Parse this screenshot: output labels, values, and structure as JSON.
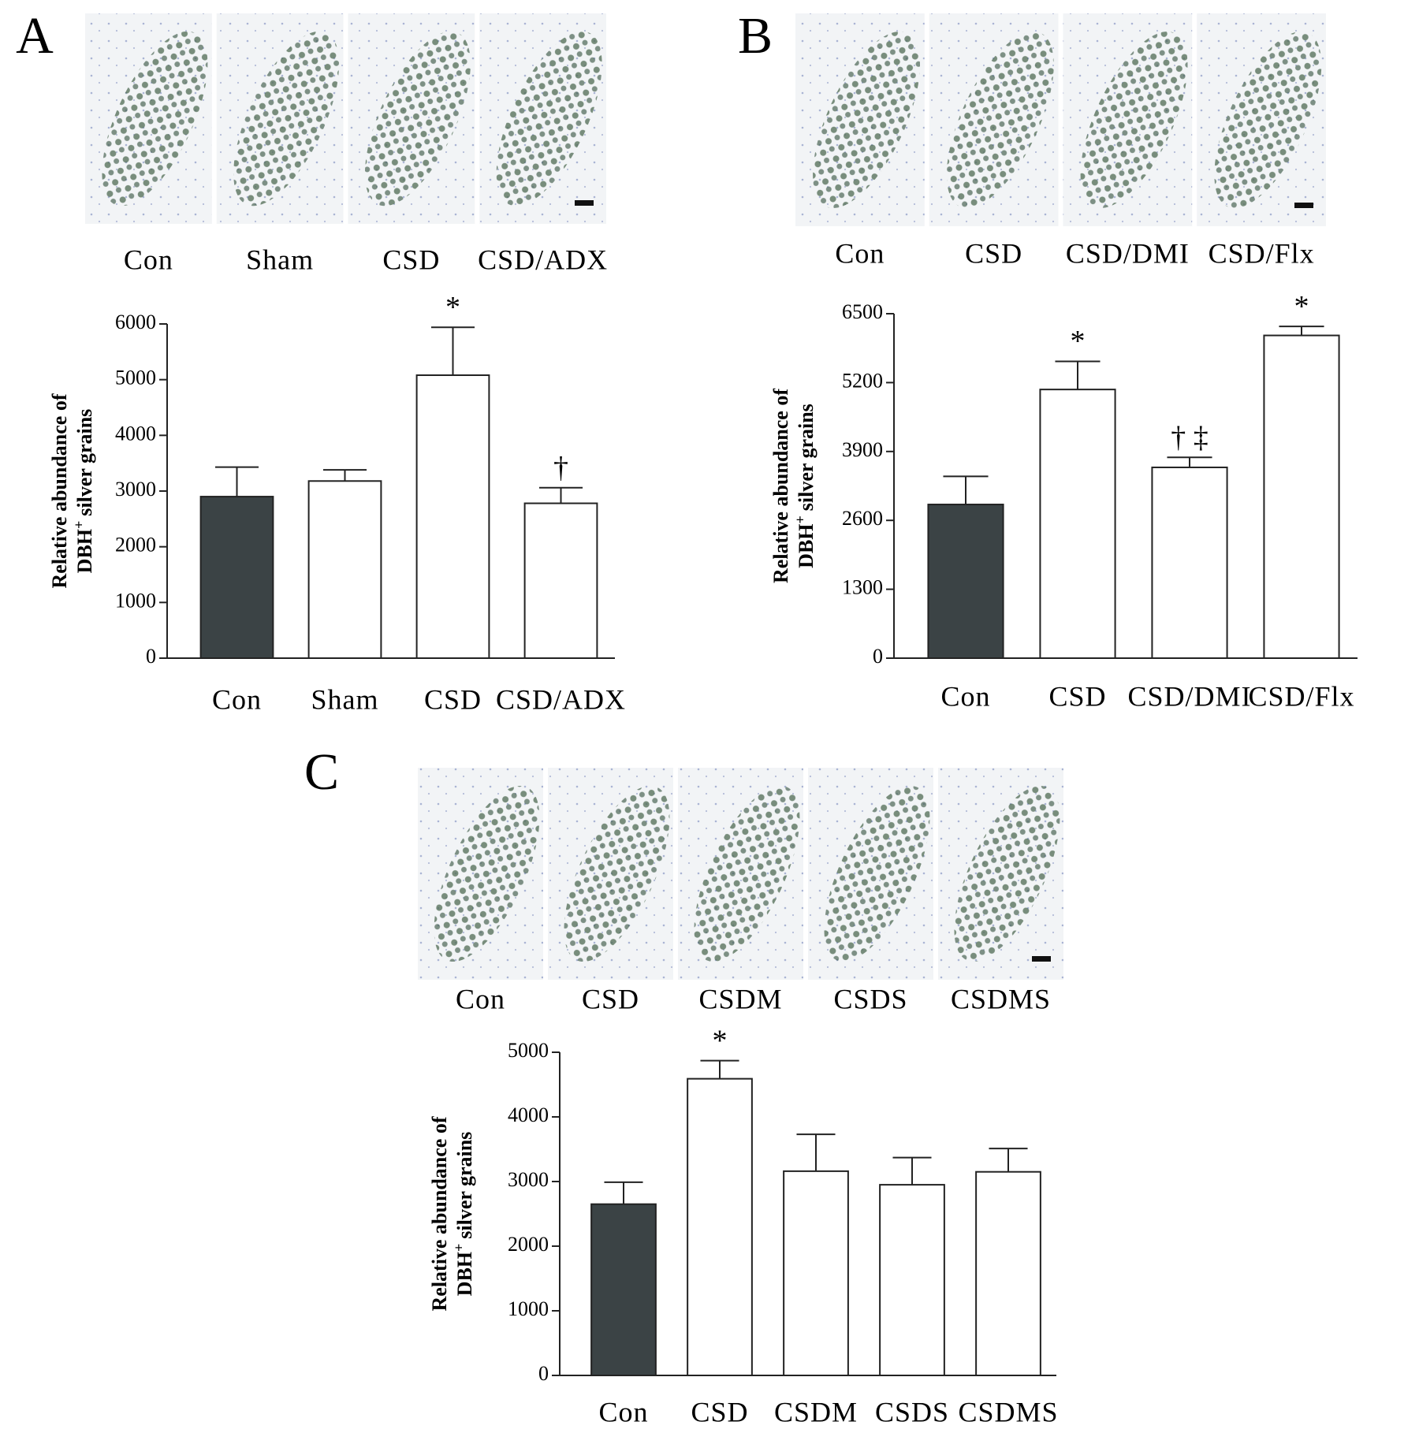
{
  "chart_data": [
    {
      "type": "bar",
      "panel": "A",
      "image_labels": [
        "Con",
        "Sham",
        "CSD",
        "CSD/ADX"
      ],
      "categories": [
        "Con",
        "Sham",
        "CSD",
        "CSD/ADX"
      ],
      "values": [
        2900,
        3180,
        5080,
        2780
      ],
      "errors": [
        530,
        200,
        860,
        280
      ],
      "colors": [
        "#3b4345",
        "#ffffff",
        "#ffffff",
        "#ffffff"
      ],
      "bar_labels": [
        null,
        null,
        "*",
        "†"
      ],
      "ylabel": [
        "Relative abundance of",
        "DBH",
        "+",
        "silver grains"
      ],
      "ylim": [
        0,
        6000
      ],
      "yticks": [
        0,
        1000,
        2000,
        3000,
        4000,
        5000,
        6000
      ]
    },
    {
      "type": "bar",
      "panel": "B",
      "image_labels": [
        "Con",
        "CSD",
        "CSD/DMI",
        "CSD/Flx"
      ],
      "categories": [
        "Con",
        "CSD",
        "CSD/DMI",
        "CSD/Flx"
      ],
      "values": [
        2900,
        5070,
        3600,
        6090
      ],
      "errors": [
        530,
        530,
        190,
        170
      ],
      "colors": [
        "#3b4345",
        "#ffffff",
        "#ffffff",
        "#ffffff"
      ],
      "bar_labels": [
        null,
        "*",
        "† ‡",
        "*"
      ],
      "ylabel": [
        "Relative abundance of",
        "DBH",
        "+",
        "silver grains"
      ],
      "ylim": [
        0,
        6500
      ],
      "yticks": [
        0,
        1300,
        2600,
        3900,
        5200,
        6500
      ]
    },
    {
      "type": "bar",
      "panel": "C",
      "image_labels": [
        "Con",
        "CSD",
        "CSDM",
        "CSDS",
        "CSDMS"
      ],
      "categories": [
        "Con",
        "CSD",
        "CSDM",
        "CSDS",
        "CSDMS"
      ],
      "values": [
        2650,
        4590,
        3160,
        2950,
        3150
      ],
      "errors": [
        340,
        280,
        570,
        420,
        360
      ],
      "colors": [
        "#3b4345",
        "#ffffff",
        "#ffffff",
        "#ffffff",
        "#ffffff"
      ],
      "bar_labels": [
        null,
        "*",
        null,
        null,
        null
      ],
      "ylabel": [
        "Relative abundance of",
        "DBH",
        "+",
        "silver grains"
      ],
      "ylim": [
        0,
        5000
      ],
      "yticks": [
        0,
        1000,
        2000,
        3000,
        4000,
        5000
      ]
    }
  ]
}
